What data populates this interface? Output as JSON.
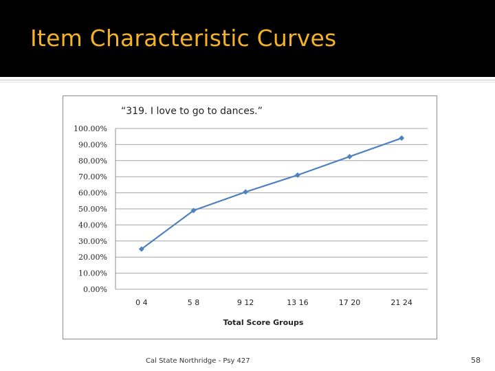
{
  "slide": {
    "title": "Item Characteristic Curves",
    "footer": "Cal State Northridge - Psy 427",
    "page_number": "58"
  },
  "chart_data": {
    "type": "line",
    "title": "“319. I love to go to dances.”",
    "xlabel": "Total Score Groups",
    "ylabel": "",
    "categories": [
      "0 4",
      "5 8",
      "9 12",
      "13 16",
      "17 20",
      "21 24"
    ],
    "series": [
      {
        "values": [
          0.25,
          0.49,
          0.605,
          0.71,
          0.825,
          0.94
        ]
      }
    ],
    "ylim": [
      0,
      1
    ],
    "yticks": [
      "0.00%",
      "10.00%",
      "20.00%",
      "30.00%",
      "40.00%",
      "50.00%",
      "60.00%",
      "70.00%",
      "80.00%",
      "90.00%",
      "100.00%"
    ],
    "grid": true,
    "legend": "none",
    "colors": {
      "line": "#4f81bd",
      "grid": "#a6a6a6"
    }
  }
}
